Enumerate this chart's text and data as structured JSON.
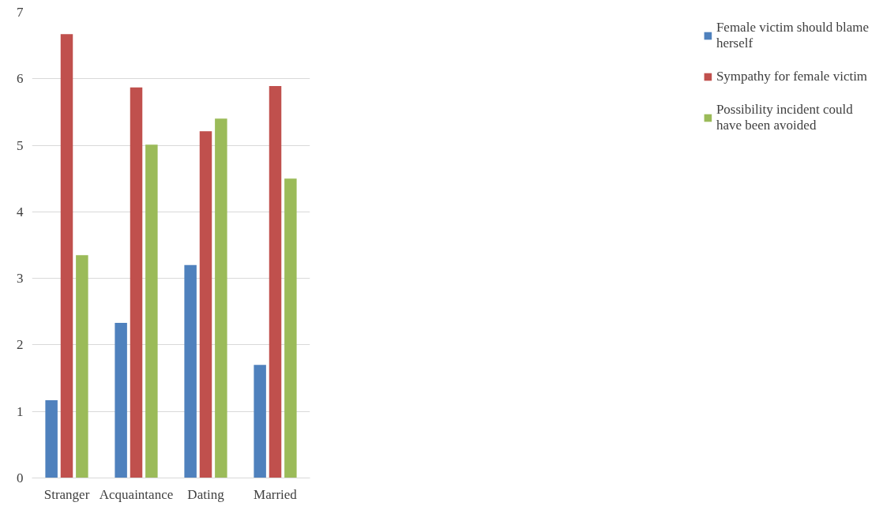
{
  "chart_data": {
    "type": "bar",
    "categories": [
      "Stranger",
      "Acquaintance",
      "Dating",
      "Married"
    ],
    "series": [
      {
        "name": "Female victim should blame herself",
        "color": "#4f81bd",
        "values": [
          1.17,
          2.33,
          3.2,
          1.7
        ]
      },
      {
        "name": "Sympathy for female victim",
        "color": "#c0504d",
        "values": [
          6.67,
          5.87,
          5.21,
          5.89
        ]
      },
      {
        "name": "Possibility incident could have been avoided",
        "color": "#9bbb59",
        "values": [
          3.35,
          5.01,
          5.4,
          4.5
        ]
      }
    ],
    "ylim": [
      0,
      7
    ],
    "yticks": [
      0,
      1,
      2,
      3,
      4,
      5,
      6,
      7
    ],
    "grid": "y",
    "legend": "right"
  }
}
